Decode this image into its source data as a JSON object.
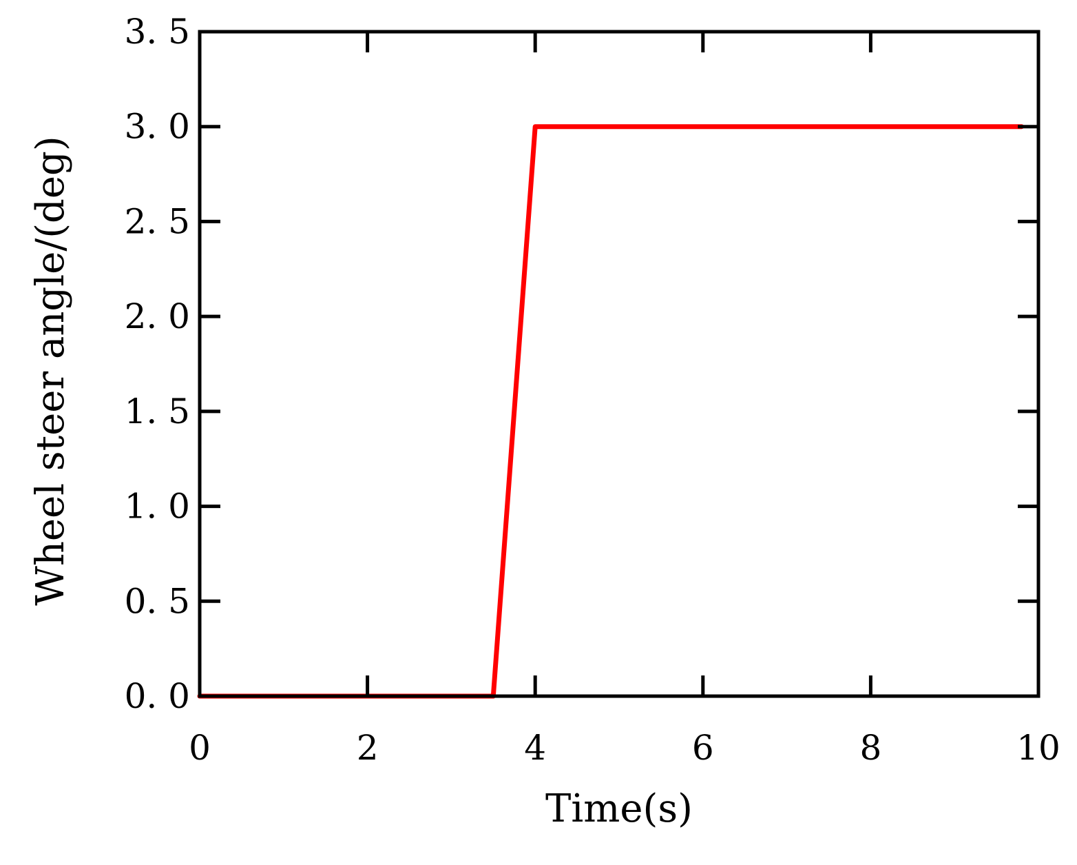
{
  "chart_data": {
    "type": "line",
    "title": "",
    "xlabel": "Time(s)",
    "ylabel": "Wheel steer angle/(deg)",
    "xlim": [
      0,
      10
    ],
    "ylim": [
      0,
      3.5
    ],
    "x_ticks": [
      0,
      2,
      4,
      6,
      8,
      10
    ],
    "x_tick_labels": [
      "0",
      "2",
      "4",
      "6",
      "8",
      "10"
    ],
    "y_ticks": [
      0.0,
      0.5,
      1.0,
      1.5,
      2.0,
      2.5,
      3.0,
      3.5
    ],
    "y_tick_labels": [
      "0. 0",
      "0. 5",
      "1. 0",
      "1. 5",
      "2. 0",
      "2. 5",
      "3. 0",
      "3. 5"
    ],
    "grid": false,
    "legend": "none",
    "series": [
      {
        "color": "#ff0000",
        "x": [
          0,
          3.5,
          4.0,
          9.8
        ],
        "y": [
          0,
          0,
          3.0,
          3.0
        ]
      }
    ],
    "axis_color": "#000000"
  }
}
